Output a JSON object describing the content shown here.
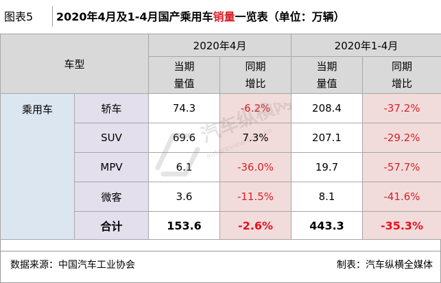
{
  "header": {
    "figure_label": "图表5",
    "title_prefix": "2020年4月及1-4月国产乘用车",
    "title_highlight": "销量",
    "title_suffix": "一览表（单位：万辆）"
  },
  "table": {
    "model_header": "车型",
    "period1": "2020年4月",
    "period2": "2020年1-4月",
    "sub_current_line1": "当期",
    "sub_current_line2": "量值",
    "sub_yoy_line1": "同期",
    "sub_yoy_line2": "增比",
    "category": "乘用车",
    "rows": [
      {
        "name": "轿车",
        "apr_value": "74.3",
        "apr_yoy": "-6.2%",
        "ytd_value": "208.4",
        "ytd_yoy": "-37.2%"
      },
      {
        "name": "SUV",
        "apr_value": "69.6",
        "apr_yoy": "7.3%",
        "ytd_value": "207.1",
        "ytd_yoy": "-29.2%"
      },
      {
        "name": "MPV",
        "apr_value": "6.1",
        "apr_yoy": "-36.0%",
        "ytd_value": "19.7",
        "ytd_yoy": "-57.7%"
      },
      {
        "name": "微客",
        "apr_value": "3.6",
        "apr_yoy": "-11.5%",
        "ytd_value": "8.1",
        "ytd_yoy": "-41.6%"
      }
    ],
    "total": {
      "name": "合计",
      "apr_value": "153.6",
      "apr_yoy": "-2.6%",
      "ytd_value": "443.3",
      "ytd_yoy": "-35.3%"
    }
  },
  "footer": {
    "source": "数据来源：中国汽车工业协会",
    "maker": "制表：汽车纵横全媒体"
  },
  "watermark": {
    "text": "汽车纵横网",
    "url": "autoreview.com.cn"
  },
  "colors": {
    "highlight_red": "#d8202a",
    "header_grey": "#d9d9d9",
    "name_blue": "#dce6f1",
    "name_lilac": "#e4dfec",
    "yoy_pink": "#f2dcdb"
  }
}
